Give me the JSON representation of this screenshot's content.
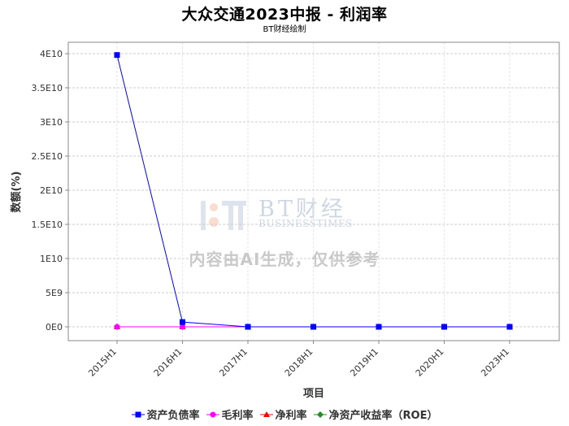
{
  "title": "大众交通2023中报 - 利润率",
  "subtitle": "BT财经绘制",
  "watermark": {
    "brand_cn": "BT财经",
    "brand_en": "BUSINESSTIMES",
    "notice": "内容由AI生成，仅供参考"
  },
  "chart_data": {
    "type": "line",
    "xlabel": "项目",
    "ylabel": "数额(%)",
    "categories": [
      "2015H1",
      "2016H1",
      "2017H1",
      "2018H1",
      "2019H1",
      "2020H1",
      "2023H1"
    ],
    "ylim": [
      0,
      40000000000
    ],
    "yticks": [
      {
        "value": 0,
        "label": "0E0"
      },
      {
        "value": 5000000000,
        "label": "5E9"
      },
      {
        "value": 10000000000,
        "label": "1E10"
      },
      {
        "value": 15000000000,
        "label": "1.5E10"
      },
      {
        "value": 20000000000,
        "label": "2E10"
      },
      {
        "value": 25000000000,
        "label": "2.5E10"
      },
      {
        "value": 30000000000,
        "label": "3E10"
      },
      {
        "value": 35000000000,
        "label": "3.5E10"
      },
      {
        "value": 40000000000,
        "label": "4E10"
      }
    ],
    "grid": true,
    "legend_position": "bottom",
    "series": [
      {
        "name": "资产负债率",
        "color": "#0000ff",
        "marker": "square",
        "values": [
          39800000000,
          700000000,
          40,
          41,
          42,
          43,
          44
        ]
      },
      {
        "name": "毛利率",
        "color": "#ff00ff",
        "marker": "circle",
        "values": [
          30,
          28,
          26,
          24,
          22,
          5,
          10
        ]
      },
      {
        "name": "净利率",
        "color": "#ff0000",
        "marker": "triangle",
        "values": [
          25,
          22,
          20,
          19,
          18,
          2,
          8
        ]
      },
      {
        "name": "净资产收益率（ROE）",
        "color": "#228b22",
        "marker": "diamond",
        "values": [
          12,
          11,
          10,
          9,
          8,
          1,
          3
        ]
      }
    ]
  }
}
